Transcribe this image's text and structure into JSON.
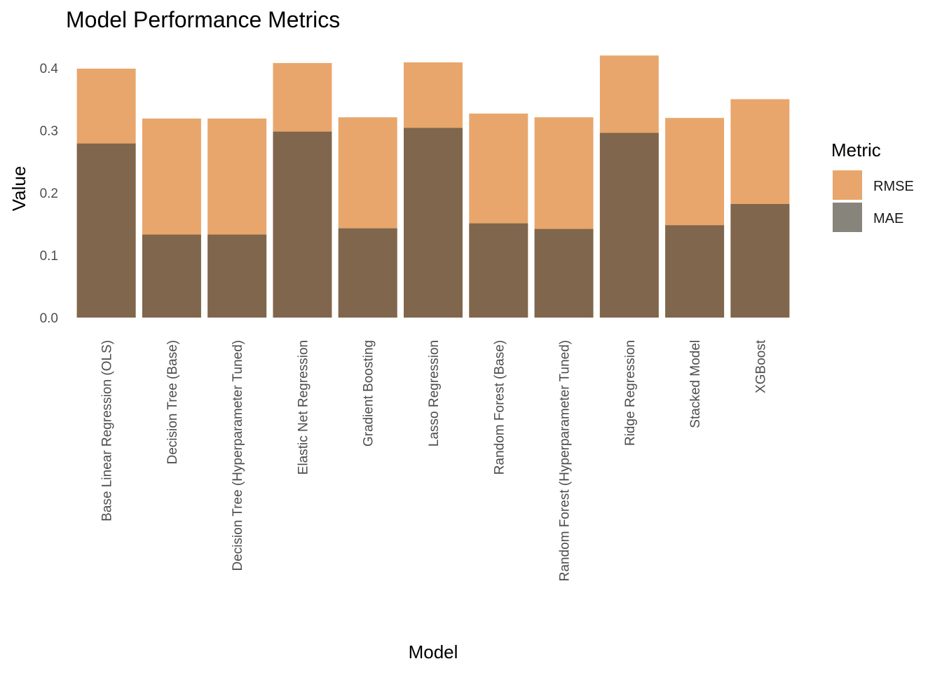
{
  "chart_data": {
    "type": "bar",
    "title": "Model Performance Metrics",
    "xlabel": "Model",
    "ylabel": "Value",
    "ylim": [
      0,
      0.43
    ],
    "yticks": [
      "0.0",
      "0.1",
      "0.2",
      "0.3",
      "0.4"
    ],
    "ytick_values": [
      0,
      0.1,
      0.2,
      0.3,
      0.4
    ],
    "grid": false,
    "legend_position": "right",
    "legend_title": "Metric",
    "bar_mode": "overlay",
    "categories": [
      "Base Linear Regression (OLS)",
      "Decision Tree (Base)",
      "Decision Tree (Hyperparameter Tuned)",
      "Elastic Net Regression",
      "Gradient Boosting",
      "Lasso Regression",
      "Random Forest (Base)",
      "Random Forest (Hyperparameter Tuned)",
      "Ridge Regression",
      "Stacked Model",
      "XGBoost"
    ],
    "series": [
      {
        "name": "RMSE",
        "color": "#e8a66c",
        "values": [
          0.399,
          0.319,
          0.319,
          0.408,
          0.321,
          0.409,
          0.327,
          0.321,
          0.42,
          0.32,
          0.35
        ]
      },
      {
        "name": "MAE",
        "color": "#7f664d",
        "values": [
          0.279,
          0.133,
          0.133,
          0.298,
          0.143,
          0.304,
          0.151,
          0.142,
          0.296,
          0.148,
          0.182
        ]
      }
    ],
    "legend_swatch_colors": {
      "RMSE": "#e8a66c",
      "MAE": "#87847b"
    }
  }
}
